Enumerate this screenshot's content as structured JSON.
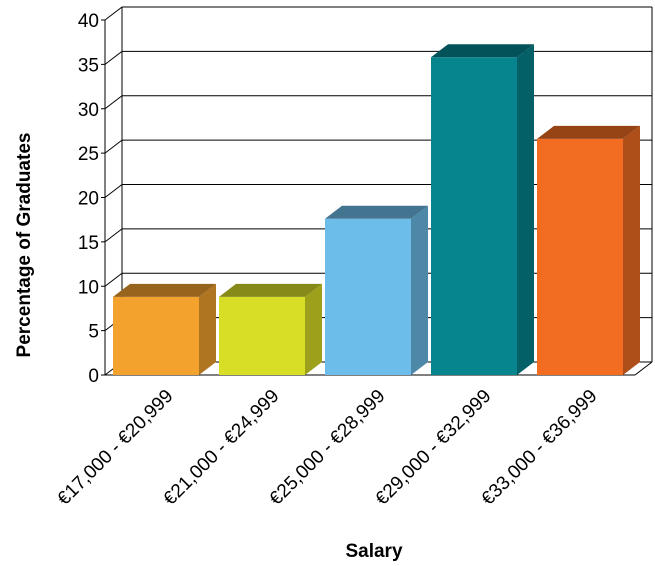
{
  "chart_data": {
    "type": "bar",
    "title": "",
    "xlabel": "Salary",
    "ylabel": "Percentage of Graduates",
    "ylim": [
      0,
      40
    ],
    "yticks": [
      0,
      5,
      10,
      15,
      20,
      25,
      30,
      35,
      40
    ],
    "grid": true,
    "style": "3d",
    "categories": [
      "€17,000 - €20,999",
      "€21,000 - €24,999",
      "€25,000 - €28,999",
      "€29,000 - €32,999",
      "€33,000 - €36,999"
    ],
    "values": [
      8.8,
      8.8,
      17.6,
      35.8,
      26.6
    ],
    "colors": [
      "#F4A22E",
      "#D8DE26",
      "#6CBDE9",
      "#06858F",
      "#F26C22"
    ]
  }
}
